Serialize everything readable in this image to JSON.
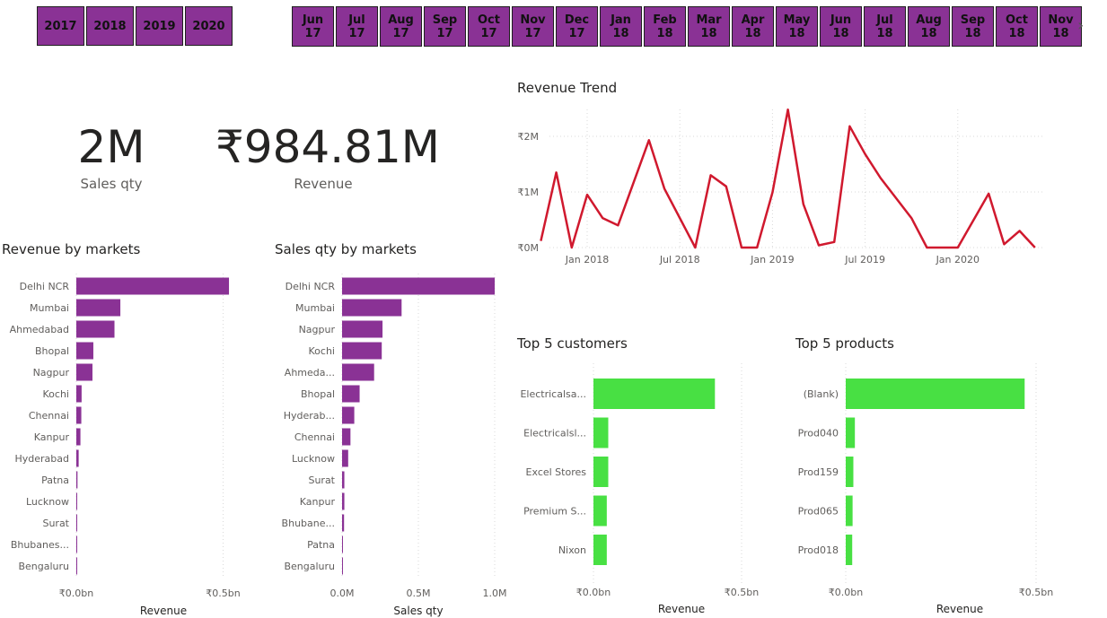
{
  "slicers": {
    "years": [
      "2017",
      "2018",
      "2019",
      "2020"
    ],
    "months": [
      [
        "Jun",
        "17"
      ],
      [
        "Jul",
        "17"
      ],
      [
        "Aug",
        "17"
      ],
      [
        "Sep",
        "17"
      ],
      [
        "Oct",
        "17"
      ],
      [
        "Nov",
        "17"
      ],
      [
        "Dec",
        "17"
      ],
      [
        "Jan",
        "18"
      ],
      [
        "Feb",
        "18"
      ],
      [
        "Mar",
        "18"
      ],
      [
        "Apr",
        "18"
      ],
      [
        "May",
        "18"
      ],
      [
        "Jun",
        "18"
      ],
      [
        "Jul",
        "18"
      ],
      [
        "Aug",
        "18"
      ],
      [
        "Sep",
        "18"
      ],
      [
        "Oct",
        "18"
      ],
      [
        "Nov",
        "18"
      ]
    ],
    "next_arrow": "›"
  },
  "cards": {
    "sales_qty": {
      "value": "2M",
      "label": "Sales qty"
    },
    "revenue": {
      "value": "₹984.81M",
      "label": "Revenue"
    }
  },
  "colors": {
    "purple": "#8a3295",
    "green": "#48e043",
    "red": "#d0192e",
    "grid": "#d9d9d9"
  },
  "chart_data": [
    {
      "id": "revenue_by_markets",
      "type": "bar",
      "title": "Revenue by markets",
      "xlabel": "Revenue",
      "categories": [
        "Delhi NCR",
        "Mumbai",
        "Ahmedabad",
        "Bhopal",
        "Nagpur",
        "Kochi",
        "Chennai",
        "Kanpur",
        "Hyderabad",
        "Patna",
        "Lucknow",
        "Surat",
        "Bhubanes...",
        "Bengaluru"
      ],
      "values": [
        0.52,
        0.15,
        0.13,
        0.058,
        0.055,
        0.018,
        0.017,
        0.014,
        0.008,
        0.004,
        0.003,
        0.002,
        0.002,
        0.001
      ],
      "ticks": [
        {
          "v": 0,
          "label": "₹0.0bn"
        },
        {
          "v": 0.5,
          "label": "₹0.5bn"
        }
      ],
      "xlim": [
        0,
        0.5
      ]
    },
    {
      "id": "sales_qty_by_markets",
      "type": "bar",
      "title": "Sales qty by markets",
      "xlabel": "Sales qty",
      "categories": [
        "Delhi NCR",
        "Mumbai",
        "Nagpur",
        "Kochi",
        "Ahmeda...",
        "Bhopal",
        "Hyderab...",
        "Chennai",
        "Lucknow",
        "Surat",
        "Kanpur",
        "Bhubane...",
        "Patna",
        "Bengaluru"
      ],
      "values": [
        1.0,
        0.39,
        0.265,
        0.26,
        0.21,
        0.115,
        0.08,
        0.055,
        0.04,
        0.015,
        0.015,
        0.013,
        0.005,
        0.003
      ],
      "ticks": [
        {
          "v": 0,
          "label": "0.0M"
        },
        {
          "v": 0.5,
          "label": "0.5M"
        },
        {
          "v": 1.0,
          "label": "1.0M"
        }
      ],
      "xlim": [
        0,
        1.0
      ]
    },
    {
      "id": "revenue_trend",
      "type": "line",
      "title": "Revenue Trend",
      "x": [
        "2017-10",
        "2017-11",
        "2017-12",
        "2018-01",
        "2018-02",
        "2018-03",
        "2018-05",
        "2018-06",
        "2018-08",
        "2018-09",
        "2018-10",
        "2018-11",
        "2018-12",
        "2019-01",
        "2019-02",
        "2019-03",
        "2019-04",
        "2019-05",
        "2019-06",
        "2019-07",
        "2019-08",
        "2019-10",
        "2019-11",
        "2020-01",
        "2020-03",
        "2020-04",
        "2020-05",
        "2020-06"
      ],
      "values": [
        0.12,
        1.35,
        0.0,
        0.95,
        0.53,
        0.4,
        1.93,
        1.06,
        0.0,
        1.3,
        1.1,
        0.0,
        0.0,
        0.99,
        2.48,
        0.78,
        0.04,
        0.1,
        2.18,
        1.68,
        1.25,
        0.53,
        0.0,
        0.0,
        0.97,
        0.06,
        0.3,
        0.0
      ],
      "y_unit": "M",
      "yticks": [
        {
          "v": 0,
          "label": "₹0M"
        },
        {
          "v": 1,
          "label": "₹1M"
        },
        {
          "v": 2,
          "label": "₹2M"
        }
      ],
      "xticks": [
        {
          "v": "2018-01",
          "label": "Jan 2018"
        },
        {
          "v": "2018-07",
          "label": "Jul 2018"
        },
        {
          "v": "2019-01",
          "label": "Jan 2019"
        },
        {
          "v": "2019-07",
          "label": "Jul 2019"
        },
        {
          "v": "2020-01",
          "label": "Jan 2020"
        }
      ]
    },
    {
      "id": "top5_customers",
      "type": "bar",
      "title": "Top 5 customers",
      "xlabel": "Revenue",
      "categories": [
        "Electricalsa...",
        "Electricalsl...",
        "Excel Stores",
        "Premium S...",
        "Nixon"
      ],
      "values": [
        0.41,
        0.05,
        0.05,
        0.045,
        0.045
      ],
      "ticks": [
        {
          "v": 0,
          "label": "₹0.0bn"
        },
        {
          "v": 0.5,
          "label": "₹0.5bn"
        }
      ],
      "xlim": [
        0,
        0.5
      ]
    },
    {
      "id": "top5_products",
      "type": "bar",
      "title": "Top 5 products",
      "xlabel": "Revenue",
      "categories": [
        "(Blank)",
        "Prod040",
        "Prod159",
        "Prod065",
        "Prod018"
      ],
      "values": [
        0.47,
        0.024,
        0.02,
        0.018,
        0.017
      ],
      "ticks": [
        {
          "v": 0,
          "label": "₹0.0bn"
        },
        {
          "v": 0.5,
          "label": "₹0.5bn"
        }
      ],
      "xlim": [
        0,
        0.5
      ]
    }
  ]
}
